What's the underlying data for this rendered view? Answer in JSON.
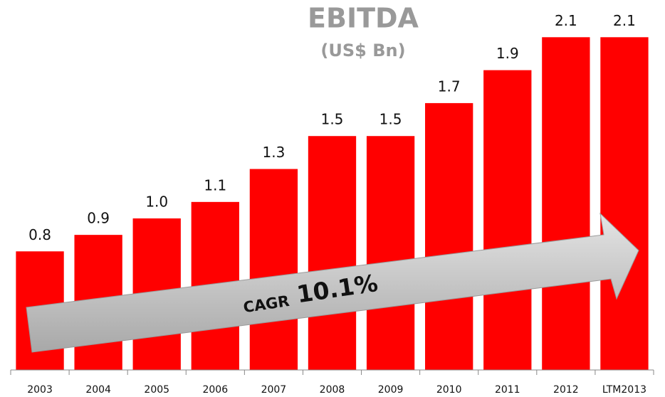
{
  "chart_data": {
    "type": "bar",
    "title": "EBITDA",
    "subtitle": "(US$ Bn)",
    "categories": [
      "2003",
      "2004",
      "2005",
      "2006",
      "2007",
      "2008",
      "2009",
      "2010",
      "2011",
      "2012",
      "LTM2013"
    ],
    "values": [
      0.8,
      0.9,
      1.0,
      1.1,
      1.3,
      1.5,
      1.5,
      1.7,
      1.9,
      2.1,
      2.1
    ],
    "value_labels": [
      "0.8",
      "0.9",
      "1.0",
      "1.1",
      "1.3",
      "1.5",
      "1.5",
      "1.7",
      "1.9",
      "2.1",
      "2.1"
    ],
    "color": "#ff0000",
    "ylim": [
      0.08,
      2.3
    ],
    "annotations": [
      "CAGR",
      "10.1%"
    ]
  }
}
